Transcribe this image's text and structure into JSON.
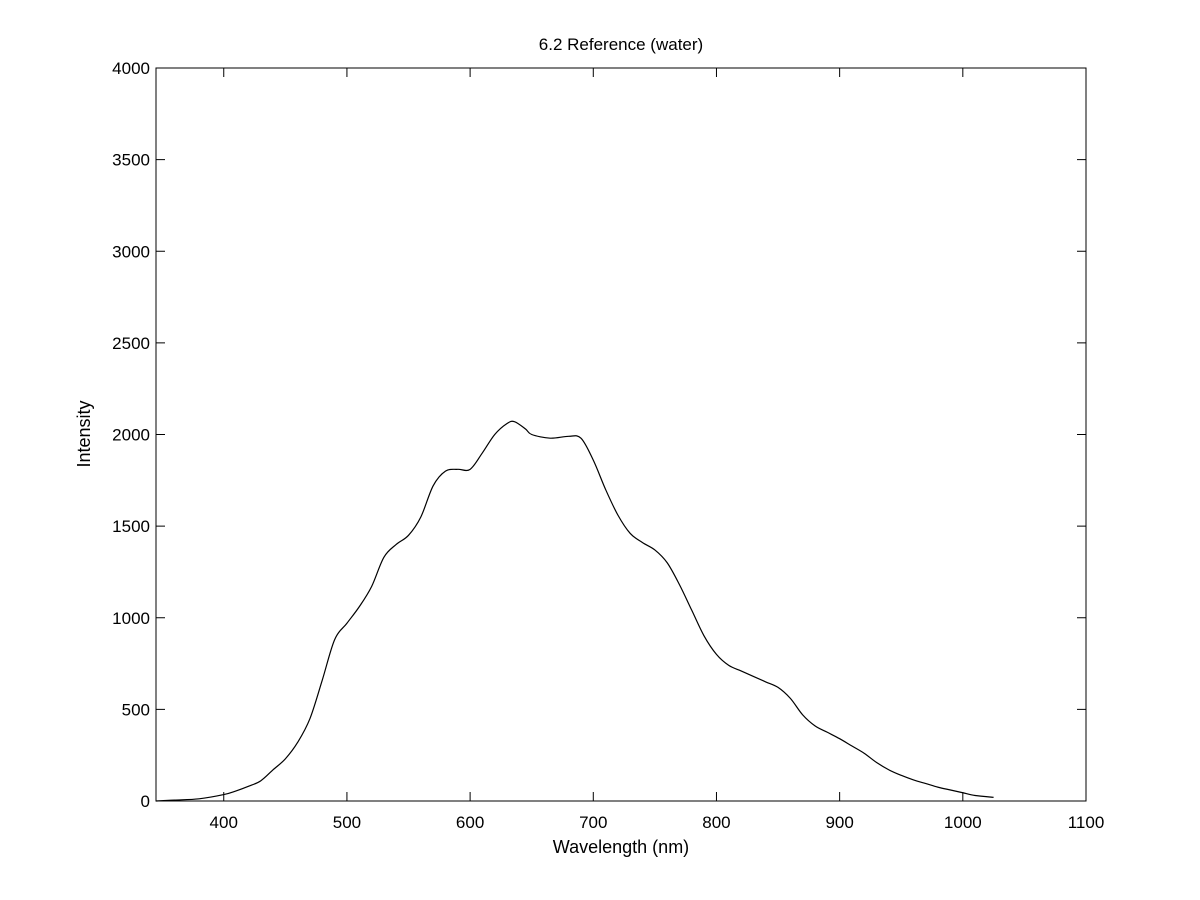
{
  "chart_data": {
    "type": "line",
    "title": "6.2 Reference (water)",
    "xlabel": "Wavelength (nm)",
    "ylabel": "Intensity",
    "xlim": [
      345,
      1100
    ],
    "ylim": [
      0,
      4000
    ],
    "xticks": [
      400,
      500,
      600,
      700,
      800,
      900,
      1000,
      1100
    ],
    "yticks": [
      0,
      500,
      1000,
      1500,
      2000,
      2500,
      3000,
      3500,
      4000
    ],
    "grid": false,
    "legend": false,
    "series": [
      {
        "color": "#000000",
        "x": [
          345,
          360,
          380,
          400,
          410,
          420,
          430,
          440,
          450,
          460,
          470,
          480,
          490,
          500,
          510,
          520,
          530,
          540,
          550,
          560,
          570,
          580,
          590,
          600,
          610,
          620,
          630,
          636,
          645,
          650,
          665,
          680,
          690,
          700,
          710,
          720,
          730,
          740,
          750,
          760,
          770,
          780,
          790,
          800,
          810,
          820,
          830,
          840,
          850,
          860,
          870,
          880,
          890,
          900,
          910,
          920,
          930,
          940,
          950,
          960,
          970,
          980,
          990,
          1000,
          1010,
          1025
        ],
        "y": [
          0,
          5,
          12,
          35,
          55,
          80,
          110,
          170,
          230,
          320,
          450,
          660,
          880,
          970,
          1060,
          1170,
          1330,
          1400,
          1450,
          1550,
          1720,
          1800,
          1810,
          1810,
          1900,
          2000,
          2060,
          2070,
          2030,
          2000,
          1980,
          1990,
          1980,
          1860,
          1700,
          1560,
          1460,
          1410,
          1370,
          1300,
          1180,
          1040,
          900,
          800,
          740,
          710,
          680,
          650,
          620,
          560,
          470,
          410,
          375,
          340,
          300,
          260,
          210,
          170,
          140,
          115,
          95,
          75,
          60,
          45,
          30,
          20
        ]
      }
    ]
  }
}
